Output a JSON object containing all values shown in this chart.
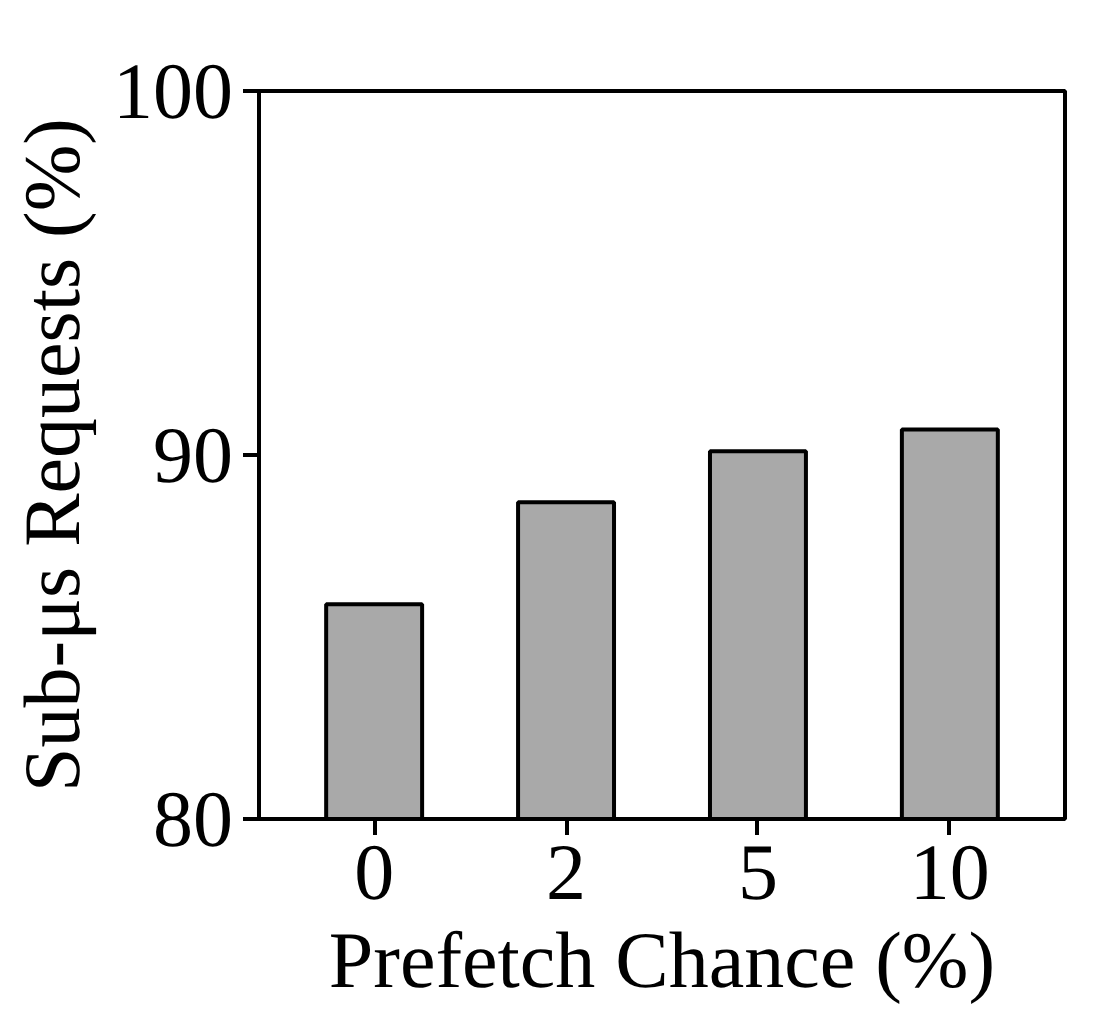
{
  "chart_data": {
    "type": "bar",
    "xlabel": "Prefetch Chance (%)",
    "ylabel": "Sub-μs Requests (%)",
    "categories": [
      "0",
      "2",
      "5",
      "10"
    ],
    "values": [
      85.9,
      88.7,
      90.1,
      90.7
    ],
    "color": "#a9a9a9",
    "ylim": [
      80,
      100
    ],
    "yticks": [
      80,
      90,
      100
    ],
    "grid": false
  }
}
